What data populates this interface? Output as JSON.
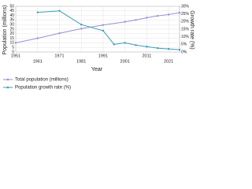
{
  "chart_data": {
    "type": "line",
    "x_label": "Year",
    "y_label": "Population (millions)",
    "y2_label": "Growth rate (%)",
    "xlim": [
      1951,
      2026
    ],
    "xticks": [
      1951,
      1961,
      1971,
      1981,
      1991,
      2001,
      2011,
      2021
    ],
    "ylim": [
      0,
      50
    ],
    "yticks": [
      0,
      5,
      10,
      15,
      20,
      25,
      30,
      35,
      40,
      45,
      50
    ],
    "y2lim": [
      0,
      30
    ],
    "y2ticks": [
      {
        "value": 0,
        "label": "0%"
      },
      {
        "value": 5,
        "label": "5%"
      },
      {
        "value": 10,
        "label": "10%"
      },
      {
        "value": 15,
        "label": "15%"
      },
      {
        "value": 20,
        "label": "20%"
      },
      {
        "value": 25,
        "label": "25%"
      },
      {
        "value": 30,
        "label": "30%"
      }
    ],
    "grid": true,
    "legend": "bottom-left",
    "series": [
      {
        "name": "Total population (millions)",
        "color": "#9a8fcf",
        "x": [
          1951,
          1961,
          1971,
          1981,
          1991,
          2001,
          2006,
          2011,
          2016,
          2021,
          2026
        ],
        "values": [
          10,
          15,
          20.5,
          25.5,
          29.5,
          33,
          35,
          37.5,
          39.5,
          41,
          43
        ]
      },
      {
        "name": "Population growth rate (%)",
        "color": "#3a9fb5",
        "axis": "y2",
        "x": [
          1961,
          1971,
          1981,
          1991,
          1996,
          2001,
          2006,
          2011,
          2016,
          2021,
          2026
        ],
        "values": [
          26,
          27,
          18,
          14,
          5,
          6,
          4.5,
          3.5,
          2.5,
          2,
          1.5
        ]
      }
    ]
  }
}
